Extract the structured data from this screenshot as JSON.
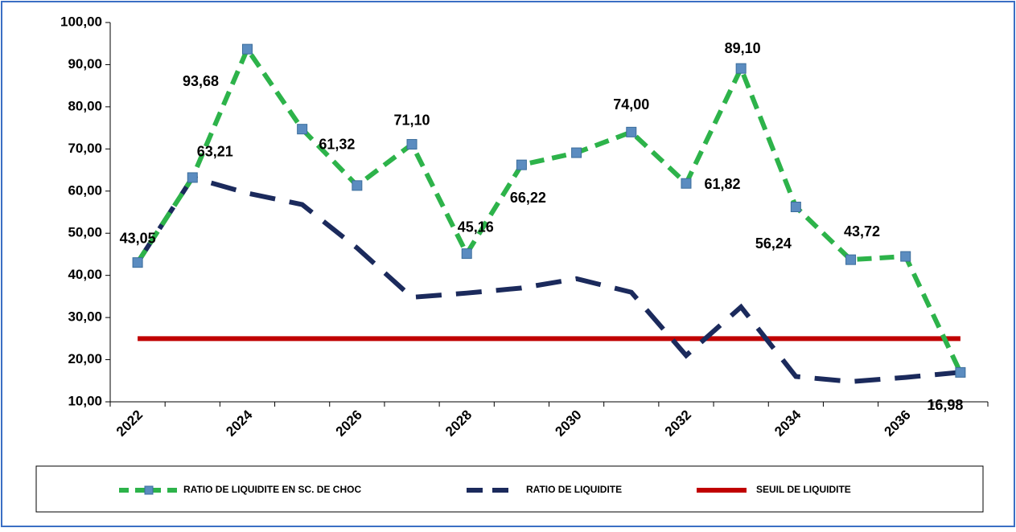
{
  "chart_data": {
    "type": "line",
    "categories": [
      "2022",
      null,
      "2024",
      null,
      "2026",
      null,
      "2028",
      null,
      "2030",
      null,
      "2032",
      null,
      "2034",
      null,
      "2036",
      null
    ],
    "series": [
      {
        "name": "RATIO DE LIQUIDITE EN SC. DE CHOC",
        "color": "#2db34a",
        "style": "dashed-markers",
        "values": [
          43.05,
          63.21,
          93.68,
          74.7,
          61.32,
          71.1,
          45.16,
          66.22,
          69.1,
          74.0,
          61.82,
          89.1,
          56.24,
          43.72,
          44.5,
          16.98
        ],
        "value_labels": [
          "43,05",
          "63,21",
          "93,68",
          null,
          "61,32",
          "71,10",
          "45,16",
          "66,22",
          null,
          "74,00",
          "61,82",
          "89,10",
          "56,24",
          "43,72",
          null,
          "16,98"
        ]
      },
      {
        "name": "RATIO DE LIQUIDITE",
        "color": "#1b2a5c",
        "style": "dashed",
        "values": [
          43.05,
          63.2,
          59.5,
          56.8,
          46.5,
          34.8,
          35.8,
          37.0,
          39.2,
          36.0,
          21.0,
          32.5,
          16.0,
          14.8,
          15.8,
          17.0
        ]
      },
      {
        "name": "SEUIL DE LIQUIDITE",
        "color": "#c00000",
        "style": "solid",
        "values": [
          25,
          25,
          25,
          25,
          25,
          25,
          25,
          25,
          25,
          25,
          25,
          25,
          25,
          25,
          25,
          25
        ]
      }
    ],
    "ylim": [
      10,
      100
    ],
    "yticks": [
      {
        "value": 10,
        "label": "10,00"
      },
      {
        "value": 20,
        "label": "20,00"
      },
      {
        "value": 30,
        "label": "30,00"
      },
      {
        "value": 40,
        "label": "40,00"
      },
      {
        "value": 50,
        "label": "50,00"
      },
      {
        "value": 60,
        "label": "60,00"
      },
      {
        "value": 70,
        "label": "70,00"
      },
      {
        "value": 80,
        "label": "80,00"
      },
      {
        "value": 90,
        "label": "90,00"
      },
      {
        "value": 100,
        "label": "100,00"
      }
    ],
    "grid": false,
    "legend": "bottom"
  }
}
